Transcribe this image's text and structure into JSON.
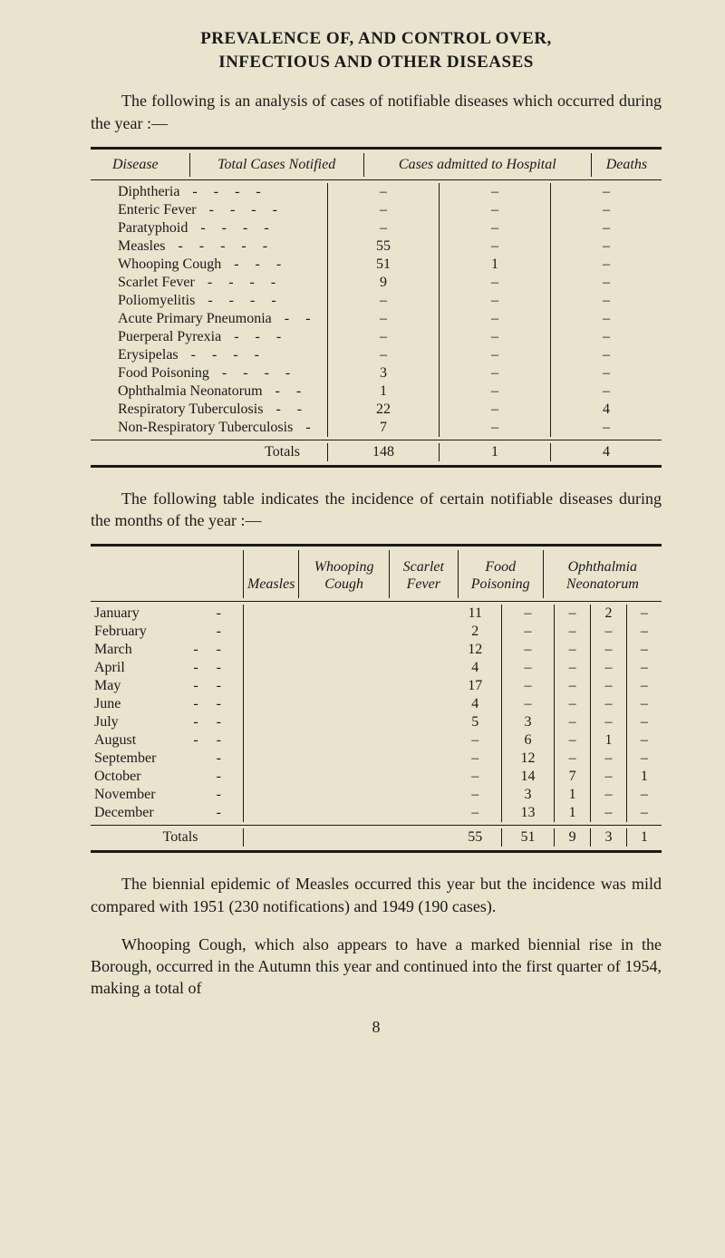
{
  "title_line1": "PREVALENCE OF, AND CONTROL OVER,",
  "title_line2": "INFECTIOUS AND OTHER DISEASES",
  "intro": "The following is an analysis of cases of notifiable diseases which occurred during the year :—",
  "table1": {
    "headers": {
      "disease": "Disease",
      "total": "Total Cases Notified",
      "admitted": "Cases admitted to Hospital",
      "deaths": "Deaths"
    },
    "rows": [
      {
        "name": "Diphtheria",
        "dashes": 4,
        "total": "–",
        "admitted": "–",
        "deaths": "–"
      },
      {
        "name": "Enteric Fever",
        "dashes": 4,
        "total": "–",
        "admitted": "–",
        "deaths": "–"
      },
      {
        "name": "Paratyphoid",
        "dashes": 4,
        "total": "–",
        "admitted": "–",
        "deaths": "–"
      },
      {
        "name": "Measles",
        "dashes": 5,
        "total": "55",
        "admitted": "–",
        "deaths": "–"
      },
      {
        "name": "Whooping Cough",
        "dashes": 3,
        "total": "51",
        "admitted": "1",
        "deaths": "–"
      },
      {
        "name": "Scarlet Fever",
        "dashes": 4,
        "total": "9",
        "admitted": "–",
        "deaths": "–"
      },
      {
        "name": "Poliomyelitis",
        "dashes": 4,
        "total": "–",
        "admitted": "–",
        "deaths": "–"
      },
      {
        "name": "Acute Primary Pneumonia",
        "dashes": 2,
        "total": "–",
        "admitted": "–",
        "deaths": "–"
      },
      {
        "name": "Puerperal Pyrexia",
        "dashes": 3,
        "total": "–",
        "admitted": "–",
        "deaths": "–"
      },
      {
        "name": "Erysipelas",
        "dashes": 4,
        "total": "–",
        "admitted": "–",
        "deaths": "–"
      },
      {
        "name": "Food Poisoning",
        "dashes": 4,
        "total": "3",
        "admitted": "–",
        "deaths": "–"
      },
      {
        "name": "Ophthalmia Neonatorum",
        "dashes": 2,
        "total": "1",
        "admitted": "–",
        "deaths": "–"
      },
      {
        "name": "Respiratory Tuberculosis",
        "dashes": 2,
        "total": "22",
        "admitted": "–",
        "deaths": "4"
      },
      {
        "name": "Non-Respiratory Tuberculosis",
        "dashes": 1,
        "total": "7",
        "admitted": "–",
        "deaths": "–"
      }
    ],
    "totals": {
      "label": "Totals",
      "total": "148",
      "admitted": "1",
      "deaths": "4"
    }
  },
  "mid_para": "The following table indicates the incidence of certain notifiable diseases during the months of the year :—",
  "table2": {
    "headers": {
      "month": "",
      "measles": "Measles",
      "whoop": "Whooping Cough",
      "scarlet": "Scarlet Fever",
      "food": "Food Poisoning",
      "oph": "Ophthalmia Neonatorum"
    },
    "rows": [
      {
        "month": "January",
        "d": 1,
        "measles": "11",
        "whoop": "–",
        "scarlet": "–",
        "food": "2",
        "oph": "–"
      },
      {
        "month": "February",
        "d": 1,
        "measles": "2",
        "whoop": "–",
        "scarlet": "–",
        "food": "–",
        "oph": "–"
      },
      {
        "month": "March",
        "d": 2,
        "measles": "12",
        "whoop": "–",
        "scarlet": "–",
        "food": "–",
        "oph": "–"
      },
      {
        "month": "April",
        "d": 2,
        "measles": "4",
        "whoop": "–",
        "scarlet": "–",
        "food": "–",
        "oph": "–"
      },
      {
        "month": "May",
        "d": 2,
        "measles": "17",
        "whoop": "–",
        "scarlet": "–",
        "food": "–",
        "oph": "–"
      },
      {
        "month": "June",
        "d": 2,
        "measles": "4",
        "whoop": "–",
        "scarlet": "–",
        "food": "–",
        "oph": "–"
      },
      {
        "month": "July",
        "d": 2,
        "measles": "5",
        "whoop": "3",
        "scarlet": "–",
        "food": "–",
        "oph": "–"
      },
      {
        "month": "August",
        "d": 2,
        "measles": "–",
        "whoop": "6",
        "scarlet": "–",
        "food": "1",
        "oph": "–"
      },
      {
        "month": "September",
        "d": 1,
        "measles": "–",
        "whoop": "12",
        "scarlet": "–",
        "food": "–",
        "oph": "–"
      },
      {
        "month": "October",
        "d": 1,
        "measles": "–",
        "whoop": "14",
        "scarlet": "7",
        "food": "–",
        "oph": "1"
      },
      {
        "month": "November",
        "d": 1,
        "measles": "–",
        "whoop": "3",
        "scarlet": "1",
        "food": "–",
        "oph": "–"
      },
      {
        "month": "December",
        "d": 1,
        "measles": "–",
        "whoop": "13",
        "scarlet": "1",
        "food": "–",
        "oph": "–"
      }
    ],
    "totals": {
      "label": "Totals",
      "measles": "55",
      "whoop": "51",
      "scarlet": "9",
      "food": "3",
      "oph": "1"
    }
  },
  "para3": "The biennial epidemic of Measles occurred this year but the incidence was mild compared with 1951 (230 notifications) and 1949 (190 cases).",
  "para4": "Whooping Cough, which also appears to have a marked biennial rise in the Borough, occurred in the Autumn this year and continued into the first quarter of 1954, making a total of",
  "pagenum": "8"
}
